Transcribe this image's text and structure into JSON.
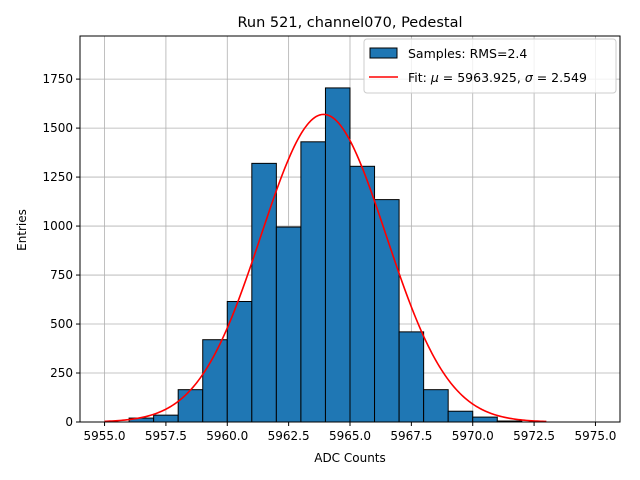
{
  "chart_data": {
    "type": "bar",
    "title": "Run 521, channel070, Pedestal",
    "xlabel": "ADC Counts",
    "ylabel": "Entries",
    "xlim": [
      5954.0,
      5976.0
    ],
    "ylim": [
      0,
      1970
    ],
    "grid": true,
    "legend_position": "top-right",
    "x_ticks": [
      5955.0,
      5957.5,
      5960.0,
      5962.5,
      5965.0,
      5967.5,
      5970.0,
      5972.5,
      5975.0
    ],
    "x_tick_labels": [
      "5955.0",
      "5957.5",
      "5960.0",
      "5962.5",
      "5965.0",
      "5967.5",
      "5970.0",
      "5972.5",
      "5975.0"
    ],
    "y_ticks": [
      0,
      250,
      500,
      750,
      1000,
      1250,
      1500,
      1750
    ],
    "y_tick_labels": [
      "0",
      "250",
      "500",
      "750",
      "1000",
      "1250",
      "1500",
      "1750"
    ],
    "histogram": {
      "name": "Samples: RMS=2.4",
      "color": "#1f77b4",
      "edge_color": "#000000",
      "bin_edges": [
        5955,
        5956,
        5957,
        5958,
        5959,
        5960,
        5961,
        5962,
        5963,
        5964,
        5965,
        5966,
        5967,
        5968,
        5969,
        5970,
        5971,
        5972,
        5973,
        5974,
        5975
      ],
      "counts": [
        0,
        20,
        35,
        165,
        420,
        615,
        1320,
        995,
        1430,
        1705,
        1305,
        1135,
        460,
        165,
        55,
        25,
        5,
        0,
        0,
        0
      ]
    },
    "fit": {
      "name_prefix": "Fit: ",
      "mu_symbol": "μ",
      "mu_text": " = 5963.925, ",
      "sigma_symbol": "σ",
      "sigma_text": " = 2.549",
      "mu": 5963.925,
      "sigma": 2.549,
      "amplitude": 1570,
      "x_range": [
        5955.0,
        5973.0
      ],
      "color": "#ff0000"
    }
  }
}
